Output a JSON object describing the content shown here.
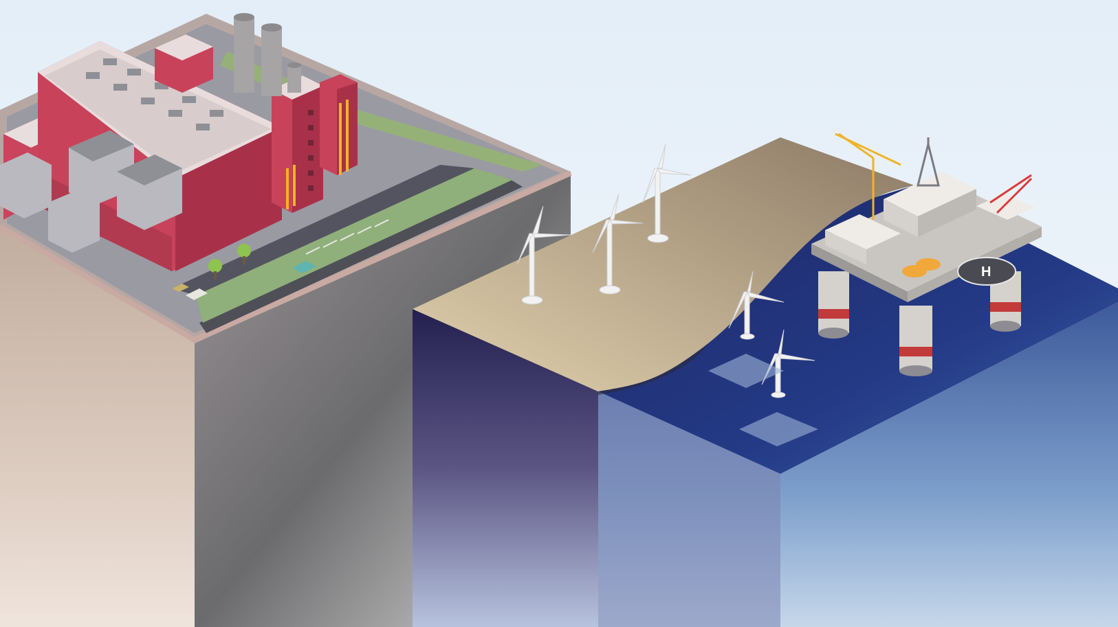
{
  "scene": {
    "subject": "isometric-energy-landscape",
    "colors": {
      "sky": "#e9f2f9",
      "plant_red": "#c9445c",
      "plant_roof": "#e7d9d9",
      "cliff_left": "#c8b6a8",
      "cliff_mid": "#8d8a8c",
      "sand": "#b8a488",
      "ocean_top": "#2a3a78",
      "ocean_deep": "#1c2560",
      "platform_gray": "#d8d4d0",
      "crane_yellow": "#f0b429",
      "crane_red": "#d93a3a"
    },
    "icons": [
      "power-plant",
      "wind-turbine",
      "oil-rig",
      "helipad",
      "crane",
      "car",
      "tree"
    ]
  }
}
